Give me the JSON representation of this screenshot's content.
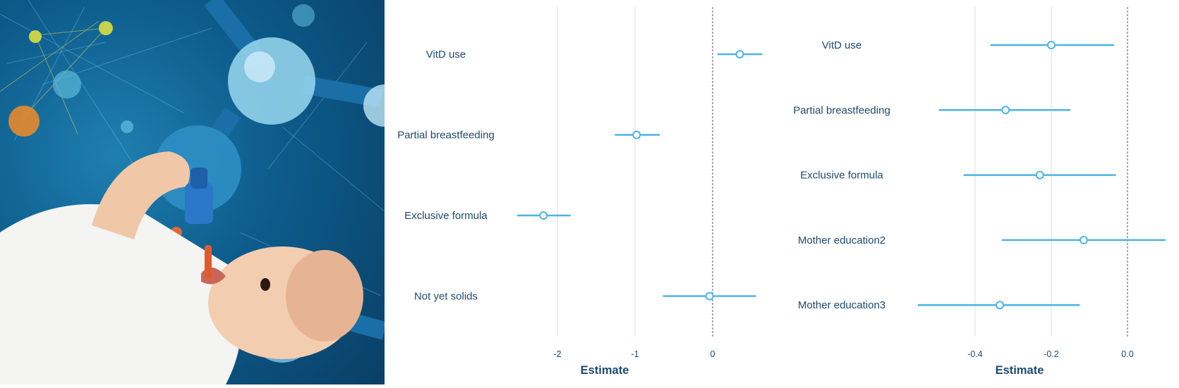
{
  "palette": {
    "mark": "#4db3e8",
    "grid": "#dcdcdc",
    "text": "#1d4a6e",
    "photo_bg": "#0d5c8c"
  },
  "photo": {
    "subject": "infant-receiving-vitamin-d-drops",
    "icon": "baby-dropper-molecule-illustration"
  },
  "chart_data": [
    {
      "type": "forest",
      "xlabel": "Estimate",
      "xticks": [
        -2,
        -1,
        0
      ],
      "xlim": [
        -2.6,
        0.75
      ],
      "reference_line": 0,
      "grid": true,
      "rows": [
        {
          "label": "VitD use",
          "estimate": 0.35,
          "lower": 0.06,
          "upper": 0.64
        },
        {
          "label": "Partial breastfeeding",
          "estimate": -0.98,
          "lower": -1.26,
          "upper": -0.68
        },
        {
          "label": "Exclusive formula",
          "estimate": -2.18,
          "lower": -2.52,
          "upper": -1.83
        },
        {
          "label": "Not yet solids",
          "estimate": -0.04,
          "lower": -0.64,
          "upper": 0.56
        }
      ]
    },
    {
      "type": "forest",
      "xlabel": "Estimate",
      "xticks": [
        -0.4,
        -0.2,
        0.0
      ],
      "xtick_labels": [
        "-0.4",
        "-0.2",
        "0.0"
      ],
      "xlim": [
        -0.6,
        0.1
      ],
      "reference_line": 0,
      "grid": true,
      "rows": [
        {
          "label": "VitD use",
          "estimate": -0.2,
          "lower": -0.36,
          "upper": -0.035
        },
        {
          "label": "Partial breastfeeding",
          "estimate": -0.32,
          "lower": -0.495,
          "upper": -0.15
        },
        {
          "label": "Exclusive formula",
          "estimate": -0.23,
          "lower": -0.43,
          "upper": -0.03
        },
        {
          "label": "Mother education2",
          "estimate": -0.115,
          "lower": -0.33,
          "upper": 0.1
        },
        {
          "label": "Mother education3",
          "estimate": -0.335,
          "lower": -0.55,
          "upper": -0.125
        }
      ]
    }
  ]
}
